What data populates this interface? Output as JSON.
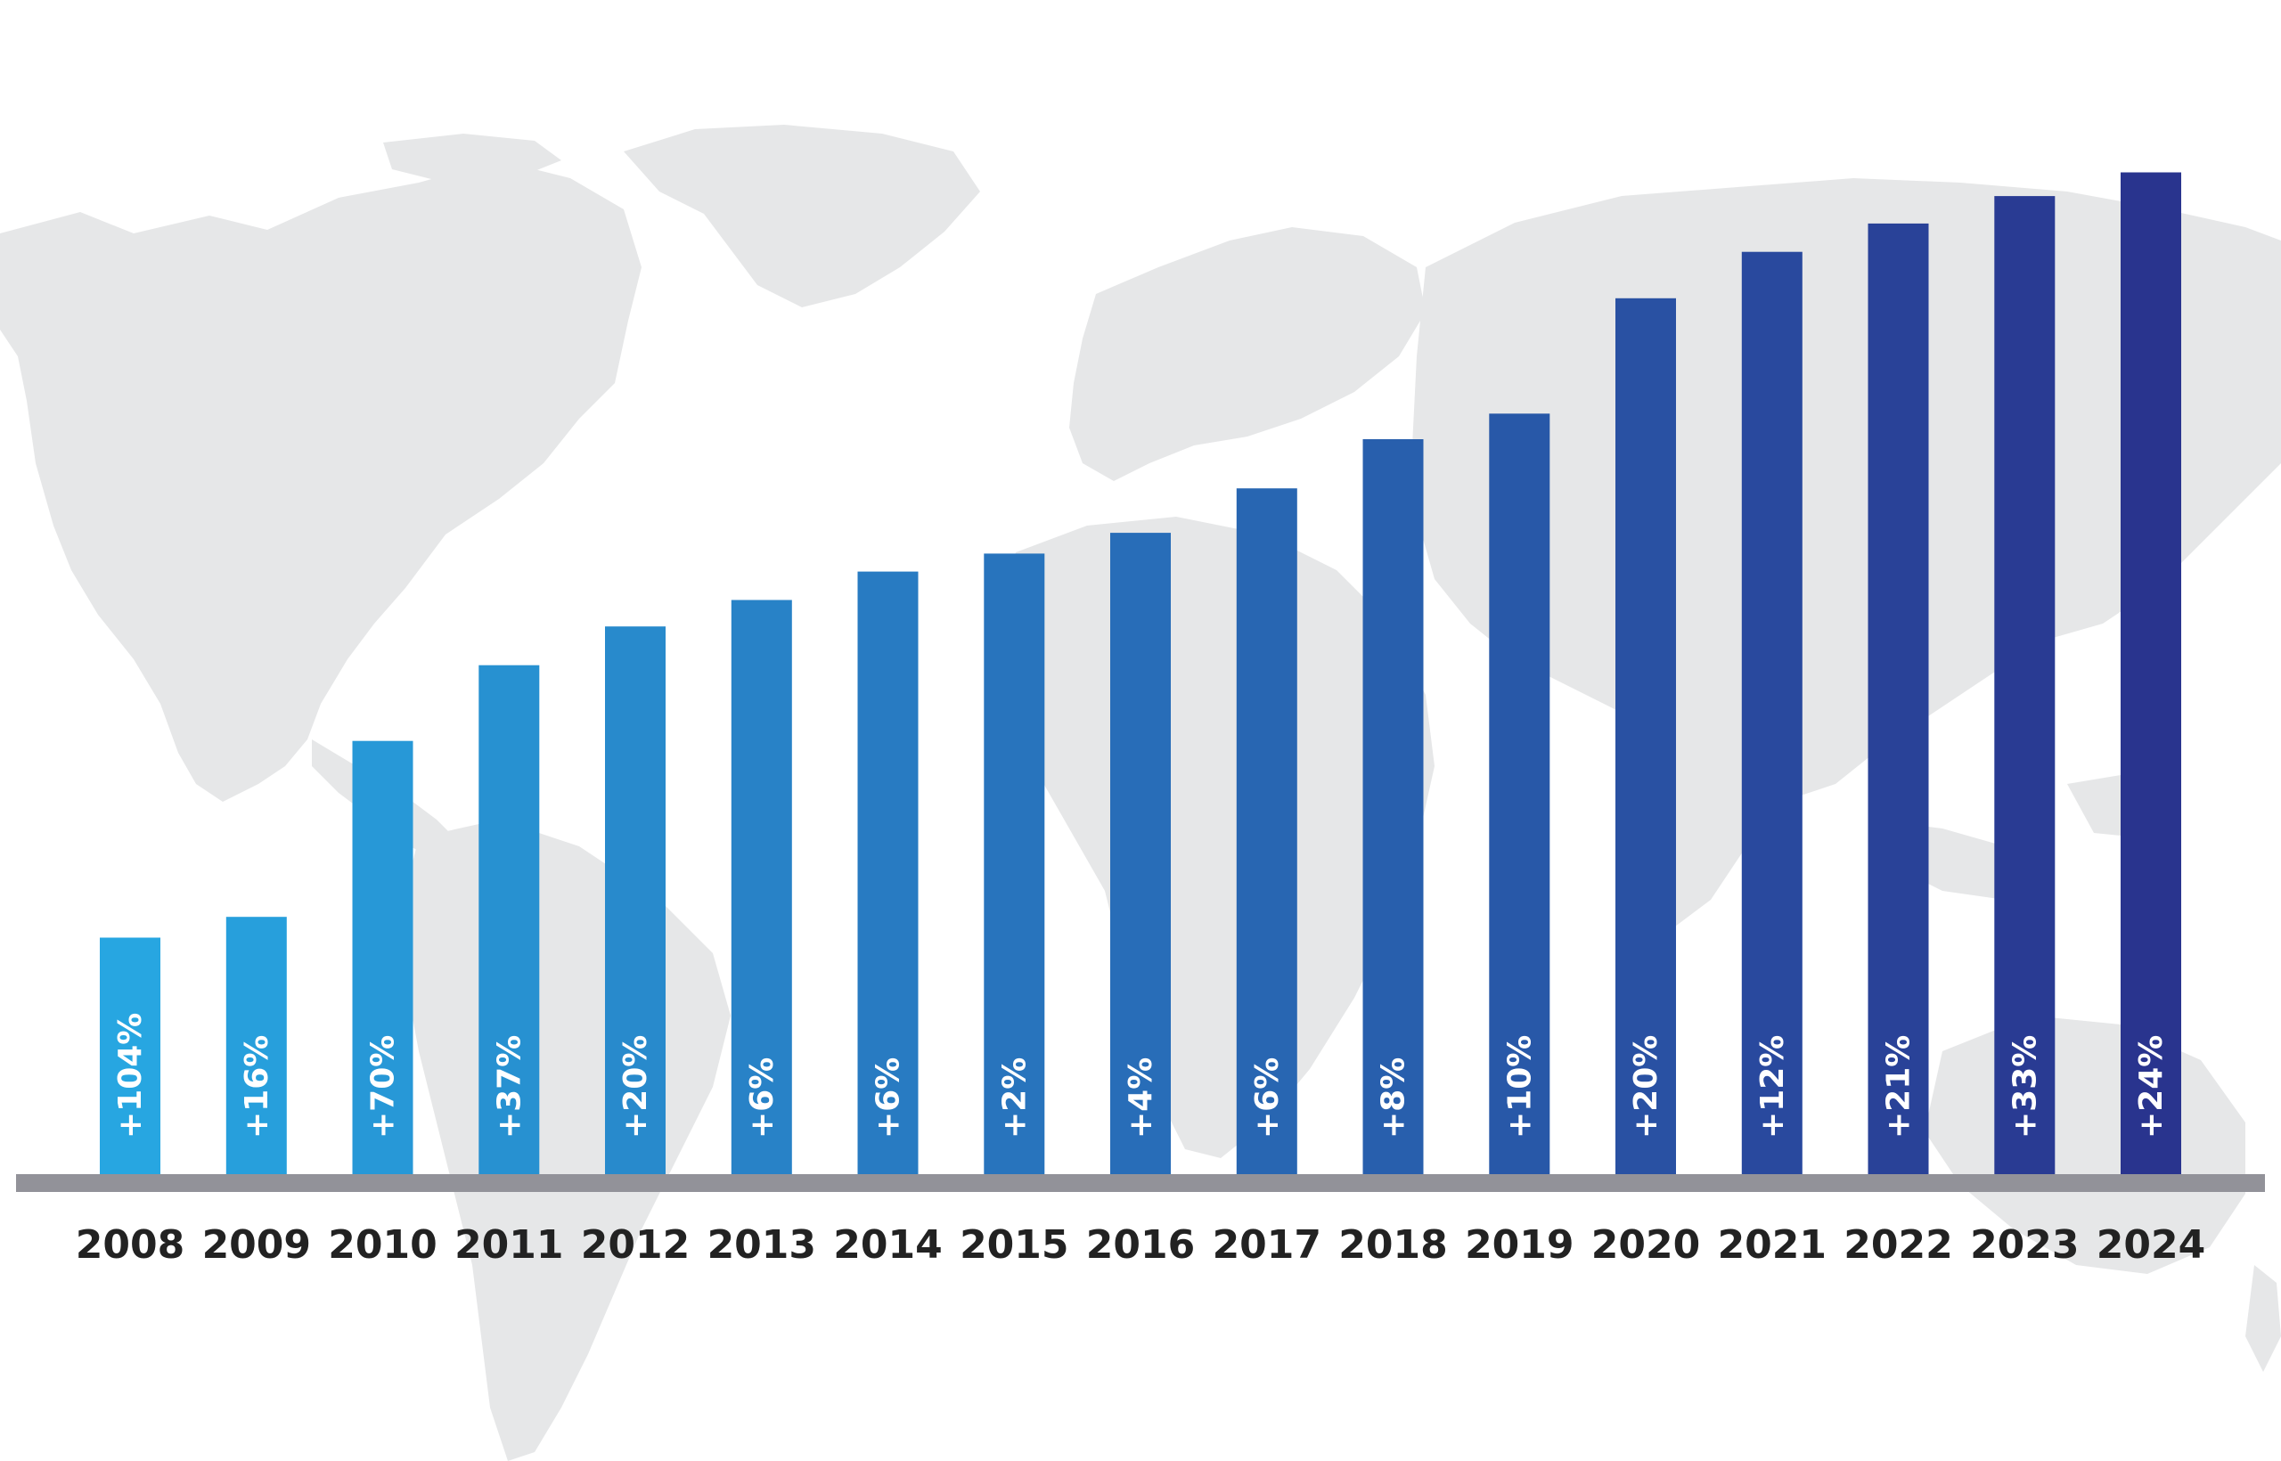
{
  "chart_data": {
    "type": "bar",
    "title": "",
    "xlabel": "",
    "ylabel": "",
    "categories": [
      "2008",
      "2009",
      "2010",
      "2011",
      "2012",
      "2013",
      "2014",
      "2015",
      "2016",
      "2017",
      "2018",
      "2019",
      "2020",
      "2021",
      "2022",
      "2023",
      "2024"
    ],
    "values": [
      250,
      272,
      458,
      538,
      579,
      607,
      637,
      656,
      678,
      725,
      777,
      804,
      926,
      975,
      1005,
      1034,
      1059
    ],
    "data_labels": [
      "+104%",
      "+16%",
      "+70%",
      "+37%",
      "+20%",
      "+6%",
      "+6%",
      "+2%",
      "+4%",
      "+6%",
      "+8%",
      "+10%",
      "+20%",
      "+12%",
      "+21%",
      "+33%",
      "+24%"
    ],
    "ylim": [
      0,
      1100
    ],
    "grid": false,
    "legend": "none",
    "colors": {
      "bar_start": "#27A6E1",
      "bar_end": "#29348E",
      "baseline": "#929299",
      "map": "#E6E7E8",
      "year_text": "#222222",
      "label_text": "#FFFFFF"
    }
  }
}
